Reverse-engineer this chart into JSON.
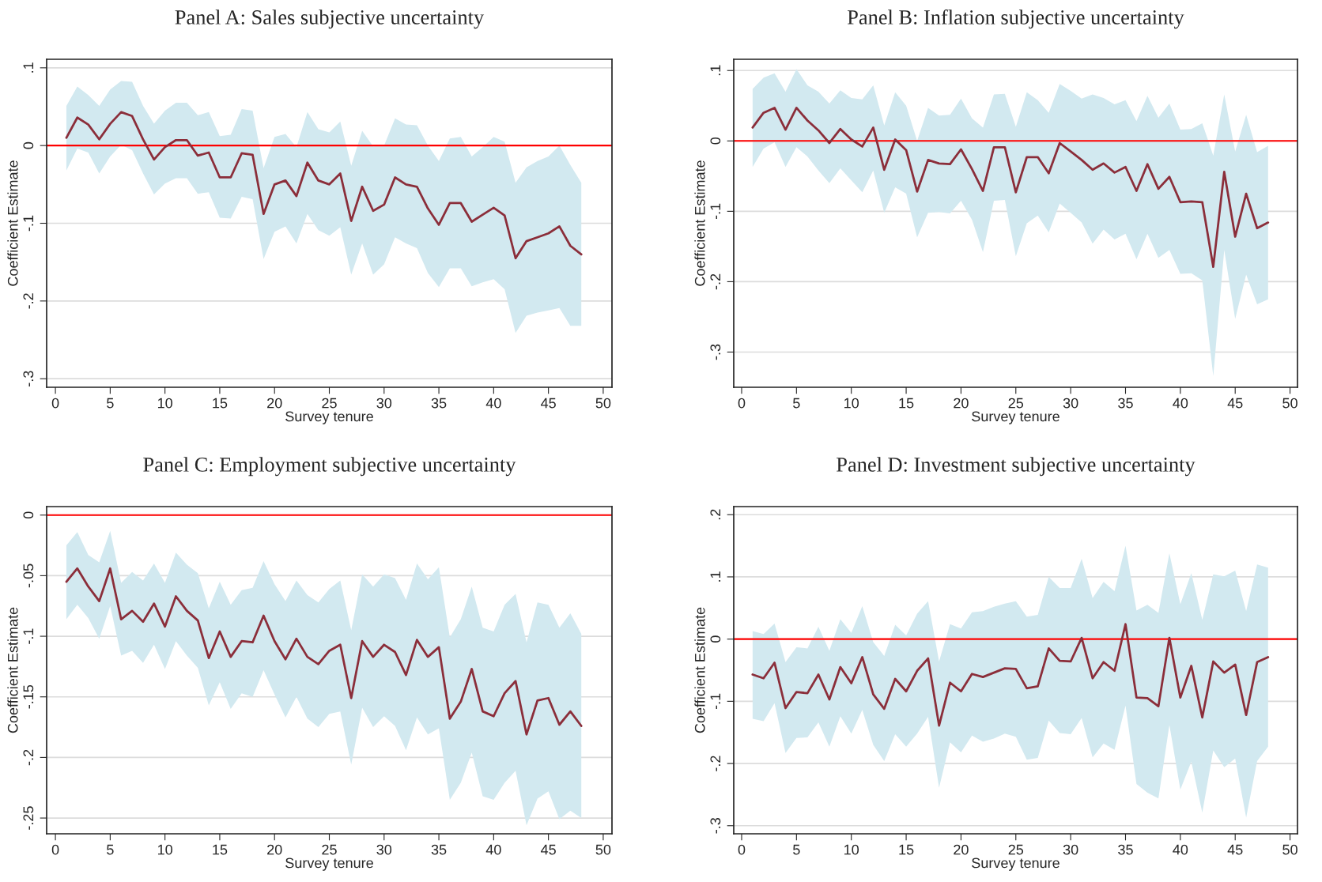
{
  "chart_data": [
    {
      "type": "line",
      "title": "Panel A: Sales subjective uncertainty",
      "xlabel": "Survey tenure",
      "ylabel": "Coefficient Estimate",
      "x": [
        1,
        2,
        3,
        4,
        5,
        6,
        7,
        8,
        9,
        10,
        11,
        12,
        13,
        14,
        15,
        16,
        17,
        18,
        19,
        20,
        21,
        22,
        23,
        24,
        25,
        26,
        27,
        28,
        29,
        30,
        31,
        32,
        33,
        34,
        35,
        36,
        37,
        38,
        39,
        40,
        41,
        42,
        43,
        44,
        45,
        46,
        47,
        48
      ],
      "series": [
        {
          "color": "#8b2e3a",
          "values": [
            0.01,
            0.036,
            0.027,
            0.008,
            0.028,
            0.043,
            0.038,
            0.008,
            -0.018,
            -0.002,
            0.007,
            0.007,
            -0.013,
            -0.009,
            -0.041,
            -0.041,
            -0.01,
            -0.012,
            -0.088,
            -0.05,
            -0.045,
            -0.065,
            -0.022,
            -0.045,
            -0.05,
            -0.036,
            -0.097,
            -0.053,
            -0.084,
            -0.076,
            -0.041,
            -0.05,
            -0.053,
            -0.081,
            -0.102,
            -0.074,
            -0.074,
            -0.098,
            -0.089,
            -0.08,
            -0.09,
            -0.145,
            -0.123,
            -0.118,
            -0.113,
            -0.104,
            -0.129,
            -0.14
          ],
          "upper": [
            0.051,
            0.076,
            0.065,
            0.051,
            0.072,
            0.083,
            0.082,
            0.051,
            0.028,
            0.045,
            0.055,
            0.055,
            0.039,
            0.043,
            0.012,
            0.014,
            0.047,
            0.045,
            -0.029,
            0.011,
            0.015,
            -0.002,
            0.043,
            0.021,
            0.017,
            0.031,
            -0.026,
            0.019,
            -0.001,
            0.0,
            0.035,
            0.027,
            0.026,
            0.0,
            -0.02,
            0.009,
            0.011,
            -0.014,
            -0.002,
            0.011,
            0.005,
            -0.048,
            -0.028,
            -0.02,
            -0.014,
            0.0,
            -0.025,
            -0.048
          ],
          "lower": [
            -0.032,
            -0.004,
            -0.009,
            -0.036,
            -0.014,
            0.001,
            -0.006,
            -0.036,
            -0.063,
            -0.049,
            -0.042,
            -0.042,
            -0.062,
            -0.06,
            -0.093,
            -0.094,
            -0.066,
            -0.069,
            -0.146,
            -0.111,
            -0.104,
            -0.126,
            -0.088,
            -0.109,
            -0.116,
            -0.105,
            -0.166,
            -0.126,
            -0.166,
            -0.153,
            -0.118,
            -0.126,
            -0.132,
            -0.164,
            -0.182,
            -0.158,
            -0.158,
            -0.181,
            -0.176,
            -0.172,
            -0.185,
            -0.241,
            -0.219,
            -0.215,
            -0.212,
            -0.209,
            -0.232,
            -0.232
          ]
        }
      ],
      "xlim": [
        -0.8,
        50.8
      ],
      "xticks": [
        0,
        5,
        10,
        15,
        20,
        25,
        30,
        35,
        40,
        45,
        50
      ],
      "ylim": [
        -0.311,
        0.111
      ],
      "yticks": [
        {
          "value": -0.3,
          "label": "-.3"
        },
        {
          "value": -0.2,
          "label": "-.2"
        },
        {
          "value": -0.1,
          "label": "-.1"
        },
        0,
        {
          "value": 0.1,
          "label": ".1"
        }
      ],
      "ref_lines": [
        {
          "axis": "y",
          "value": 0,
          "color": "#ff0000"
        }
      ],
      "grid": "y",
      "legend": false,
      "marker": "none",
      "line_style": "solid"
    },
    {
      "type": "line",
      "title": "Panel B: Inflation subjective uncertainty",
      "xlabel": "Survey tenure",
      "ylabel": "Coefficient Estimate",
      "x": [
        1,
        2,
        3,
        4,
        5,
        6,
        7,
        8,
        9,
        10,
        11,
        12,
        13,
        14,
        15,
        16,
        17,
        18,
        19,
        20,
        21,
        22,
        23,
        24,
        25,
        26,
        27,
        28,
        29,
        30,
        31,
        32,
        33,
        34,
        35,
        36,
        37,
        38,
        39,
        40,
        41,
        42,
        43,
        44,
        45,
        46,
        47,
        48
      ],
      "series": [
        {
          "color": "#8b2e3a",
          "values": [
            0.019,
            0.04,
            0.047,
            0.016,
            0.047,
            0.029,
            0.015,
            -0.003,
            0.017,
            0.002,
            -0.008,
            0.019,
            -0.041,
            0.002,
            -0.013,
            -0.072,
            -0.027,
            -0.032,
            -0.033,
            -0.012,
            -0.04,
            -0.071,
            -0.009,
            -0.009,
            -0.073,
            -0.023,
            -0.023,
            -0.046,
            -0.003,
            -0.015,
            -0.027,
            -0.041,
            -0.032,
            -0.045,
            -0.037,
            -0.071,
            -0.033,
            -0.068,
            -0.051,
            -0.087,
            -0.086,
            -0.087,
            -0.179,
            -0.044,
            -0.136,
            -0.075,
            -0.124,
            -0.116
          ],
          "upper": [
            0.074,
            0.09,
            0.096,
            0.07,
            0.102,
            0.079,
            0.07,
            0.053,
            0.072,
            0.061,
            0.059,
            0.079,
            0.022,
            0.069,
            0.05,
            0.0,
            0.047,
            0.036,
            0.037,
            0.06,
            0.032,
            0.019,
            0.066,
            0.067,
            0.02,
            0.069,
            0.058,
            0.04,
            0.081,
            0.071,
            0.06,
            0.066,
            0.061,
            0.052,
            0.058,
            0.028,
            0.064,
            0.033,
            0.053,
            0.016,
            0.017,
            0.025,
            -0.021,
            0.066,
            -0.015,
            0.037,
            -0.016,
            -0.007
          ],
          "lower": [
            -0.037,
            -0.011,
            -0.002,
            -0.037,
            -0.009,
            -0.022,
            -0.042,
            -0.06,
            -0.039,
            -0.056,
            -0.073,
            -0.042,
            -0.102,
            -0.066,
            -0.075,
            -0.137,
            -0.102,
            -0.101,
            -0.103,
            -0.085,
            -0.112,
            -0.158,
            -0.085,
            -0.084,
            -0.164,
            -0.117,
            -0.106,
            -0.13,
            -0.089,
            -0.102,
            -0.116,
            -0.146,
            -0.126,
            -0.14,
            -0.132,
            -0.168,
            -0.132,
            -0.166,
            -0.155,
            -0.189,
            -0.188,
            -0.198,
            -0.334,
            -0.155,
            -0.253,
            -0.19,
            -0.232,
            -0.225
          ]
        }
      ],
      "xlim": [
        -0.72,
        50.68
      ],
      "xticks": [
        0,
        5,
        10,
        15,
        20,
        25,
        30,
        35,
        40,
        45,
        50
      ],
      "ylim": [
        -0.35,
        0.116
      ],
      "yticks": [
        {
          "value": -0.3,
          "label": "-.3"
        },
        {
          "value": -0.2,
          "label": "-.2"
        },
        {
          "value": -0.1,
          "label": "-.1"
        },
        0,
        {
          "value": 0.1,
          "label": ".1"
        }
      ],
      "ref_lines": [
        {
          "axis": "y",
          "value": 0,
          "color": "#ff0000"
        }
      ],
      "grid": "y",
      "legend": false,
      "marker": "none",
      "line_style": "solid"
    },
    {
      "type": "line",
      "title": "Panel C: Employment subjective uncertainty",
      "xlabel": "Survey tenure",
      "ylabel": "Coefficient Estimate",
      "x": [
        1,
        2,
        3,
        4,
        5,
        6,
        7,
        8,
        9,
        10,
        11,
        12,
        13,
        14,
        15,
        16,
        17,
        18,
        19,
        20,
        21,
        22,
        23,
        24,
        25,
        26,
        27,
        28,
        29,
        30,
        31,
        32,
        33,
        34,
        35,
        36,
        37,
        38,
        39,
        40,
        41,
        42,
        43,
        44,
        45,
        46,
        47,
        48
      ],
      "series": [
        {
          "color": "#8b2e3a",
          "values": [
            -0.055,
            -0.044,
            -0.059,
            -0.071,
            -0.044,
            -0.086,
            -0.079,
            -0.088,
            -0.073,
            -0.092,
            -0.067,
            -0.079,
            -0.087,
            -0.118,
            -0.096,
            -0.117,
            -0.104,
            -0.105,
            -0.083,
            -0.104,
            -0.119,
            -0.102,
            -0.117,
            -0.123,
            -0.112,
            -0.107,
            -0.151,
            -0.104,
            -0.117,
            -0.107,
            -0.113,
            -0.132,
            -0.103,
            -0.117,
            -0.109,
            -0.168,
            -0.154,
            -0.127,
            -0.162,
            -0.166,
            -0.147,
            -0.137,
            -0.181,
            -0.153,
            -0.151,
            -0.173,
            -0.162,
            -0.174
          ],
          "upper": [
            -0.025,
            -0.014,
            -0.033,
            -0.039,
            -0.013,
            -0.056,
            -0.047,
            -0.054,
            -0.04,
            -0.056,
            -0.031,
            -0.041,
            -0.048,
            -0.077,
            -0.055,
            -0.074,
            -0.062,
            -0.06,
            -0.038,
            -0.057,
            -0.071,
            -0.054,
            -0.066,
            -0.072,
            -0.061,
            -0.054,
            -0.095,
            -0.049,
            -0.059,
            -0.049,
            -0.052,
            -0.07,
            -0.04,
            -0.053,
            -0.043,
            -0.101,
            -0.086,
            -0.059,
            -0.093,
            -0.096,
            -0.074,
            -0.065,
            -0.105,
            -0.072,
            -0.074,
            -0.093,
            -0.081,
            -0.098
          ],
          "lower": [
            -0.086,
            -0.074,
            -0.085,
            -0.102,
            -0.075,
            -0.116,
            -0.112,
            -0.122,
            -0.107,
            -0.127,
            -0.104,
            -0.116,
            -0.126,
            -0.157,
            -0.138,
            -0.16,
            -0.147,
            -0.15,
            -0.128,
            -0.148,
            -0.167,
            -0.15,
            -0.168,
            -0.175,
            -0.164,
            -0.162,
            -0.206,
            -0.159,
            -0.175,
            -0.166,
            -0.174,
            -0.194,
            -0.167,
            -0.181,
            -0.176,
            -0.235,
            -0.221,
            -0.196,
            -0.232,
            -0.235,
            -0.221,
            -0.211,
            -0.256,
            -0.234,
            -0.228,
            -0.251,
            -0.244,
            -0.25
          ]
        }
      ],
      "xlim": [
        -0.8,
        50.8
      ],
      "xticks": [
        0,
        5,
        10,
        15,
        20,
        25,
        30,
        35,
        40,
        45,
        50
      ],
      "ylim": [
        -0.263,
        0.007
      ],
      "yticks": [
        {
          "value": -0.25,
          "label": "-.25"
        },
        {
          "value": -0.2,
          "label": "-.2"
        },
        {
          "value": -0.15,
          "label": "-.15"
        },
        {
          "value": -0.1,
          "label": "-.1"
        },
        {
          "value": -0.05,
          "label": "-.05"
        },
        0
      ],
      "ref_lines": [
        {
          "axis": "y",
          "value": 0,
          "color": "#ff0000"
        }
      ],
      "grid": "y",
      "legend": false,
      "marker": "none",
      "line_style": "solid"
    },
    {
      "type": "line",
      "title": "Panel D: Investment subjective uncertainty",
      "xlabel": "Survey tenure",
      "ylabel": "Coefficient Estimate",
      "x": [
        1,
        2,
        3,
        4,
        5,
        6,
        7,
        8,
        9,
        10,
        11,
        12,
        13,
        14,
        15,
        16,
        17,
        18,
        19,
        20,
        21,
        22,
        23,
        24,
        25,
        26,
        27,
        28,
        29,
        30,
        31,
        32,
        33,
        34,
        35,
        36,
        37,
        38,
        39,
        40,
        41,
        42,
        43,
        44,
        45,
        46,
        47,
        48
      ],
      "series": [
        {
          "color": "#8b2e3a",
          "values": [
            -0.057,
            -0.063,
            -0.038,
            -0.111,
            -0.085,
            -0.087,
            -0.057,
            -0.097,
            -0.045,
            -0.071,
            -0.029,
            -0.089,
            -0.112,
            -0.064,
            -0.084,
            -0.051,
            -0.031,
            -0.139,
            -0.07,
            -0.084,
            -0.056,
            -0.061,
            -0.054,
            -0.047,
            -0.048,
            -0.079,
            -0.076,
            -0.015,
            -0.035,
            -0.036,
            0.002,
            -0.063,
            -0.037,
            -0.051,
            0.024,
            -0.094,
            -0.095,
            -0.108,
            0.002,
            -0.094,
            -0.043,
            -0.126,
            -0.036,
            -0.054,
            -0.041,
            -0.122,
            -0.037,
            -0.029
          ],
          "upper": [
            0.013,
            0.008,
            0.025,
            -0.037,
            -0.013,
            -0.015,
            0.02,
            -0.019,
            0.032,
            0.01,
            0.053,
            -0.005,
            -0.027,
            0.023,
            0.006,
            0.041,
            0.061,
            -0.036,
            0.024,
            0.017,
            0.043,
            0.045,
            0.052,
            0.057,
            0.061,
            0.036,
            0.039,
            0.1,
            0.082,
            0.082,
            0.129,
            0.066,
            0.092,
            0.077,
            0.15,
            0.046,
            0.055,
            0.042,
            0.138,
            0.056,
            0.106,
            0.031,
            0.104,
            0.101,
            0.11,
            0.045,
            0.12,
            0.115
          ],
          "lower": [
            -0.128,
            -0.132,
            -0.103,
            -0.183,
            -0.159,
            -0.158,
            -0.134,
            -0.173,
            -0.124,
            -0.152,
            -0.114,
            -0.17,
            -0.196,
            -0.153,
            -0.173,
            -0.152,
            -0.125,
            -0.239,
            -0.166,
            -0.182,
            -0.155,
            -0.165,
            -0.16,
            -0.152,
            -0.157,
            -0.194,
            -0.191,
            -0.131,
            -0.151,
            -0.153,
            -0.127,
            -0.19,
            -0.168,
            -0.178,
            -0.107,
            -0.233,
            -0.247,
            -0.256,
            -0.138,
            -0.242,
            -0.197,
            -0.279,
            -0.179,
            -0.206,
            -0.192,
            -0.287,
            -0.196,
            -0.173
          ]
        }
      ],
      "xlim": [
        -0.72,
        50.68
      ],
      "xticks": [
        0,
        5,
        10,
        15,
        20,
        25,
        30,
        35,
        40,
        45,
        50
      ],
      "ylim": [
        -0.313,
        0.213
      ],
      "yticks": [
        {
          "value": -0.3,
          "label": "-.3"
        },
        {
          "value": -0.2,
          "label": "-.2"
        },
        {
          "value": -0.1,
          "label": "-.1"
        },
        0,
        {
          "value": 0.1,
          "label": ".1"
        },
        {
          "value": 0.2,
          "label": ".2"
        }
      ],
      "ref_lines": [
        {
          "axis": "y",
          "value": 0,
          "color": "#ff0000"
        }
      ],
      "grid": "y",
      "legend": false,
      "marker": "none",
      "line_style": "solid"
    }
  ]
}
